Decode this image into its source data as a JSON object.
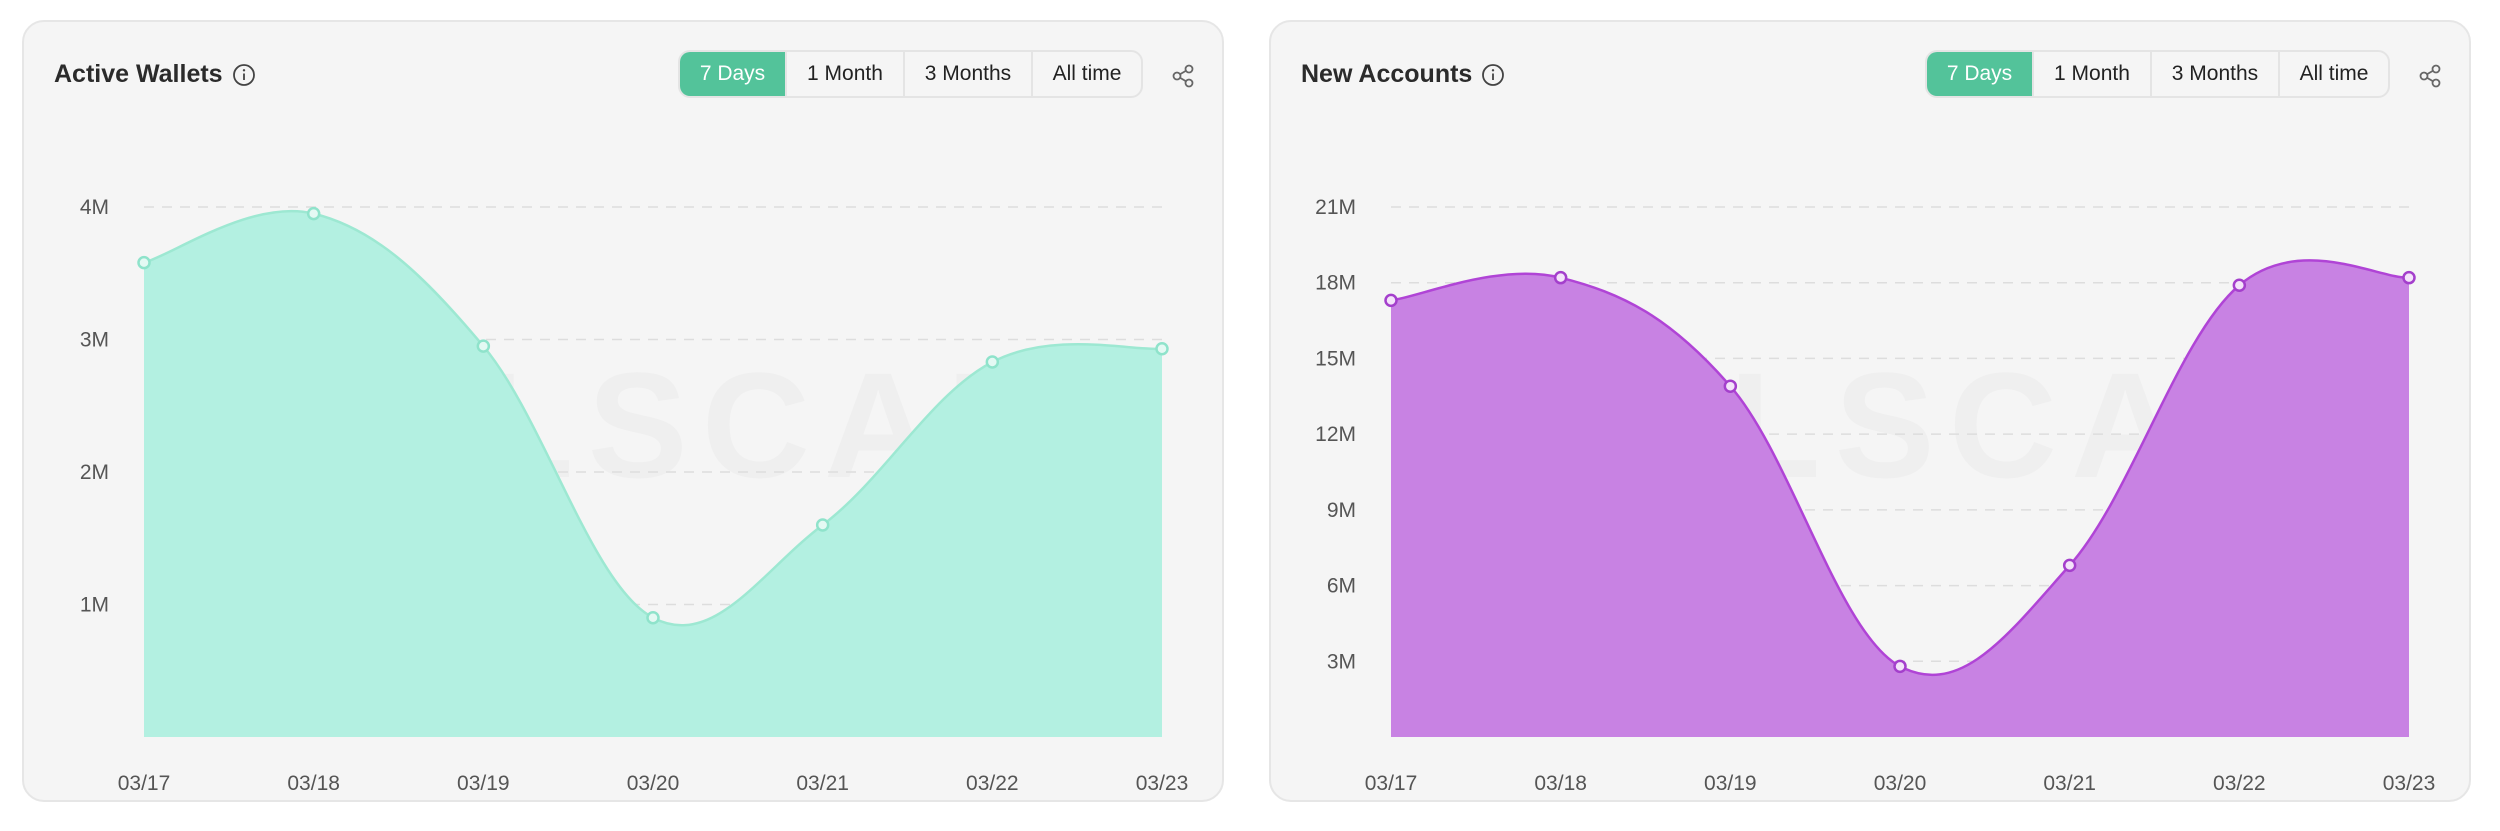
{
  "tabs": [
    "7 Days",
    "1 Month",
    "3 Months",
    "All time"
  ],
  "active_tab": "7 Days",
  "accent": "#53c39a",
  "cards": [
    {
      "title": "Active Wallets",
      "info_icon": "info-icon",
      "share_icon": "share-icon",
      "watermark": "SOLSCAN",
      "colors": {
        "line": "#9de8d2",
        "fill": "#b3f0e1",
        "marker_fill": "#e4f9f3",
        "marker_stroke": "#8fe3cb"
      }
    },
    {
      "title": "New Accounts",
      "info_icon": "info-icon",
      "share_icon": "share-icon",
      "watermark": "SOLSCAN",
      "colors": {
        "line": "#b044d6",
        "fill": "#c882e3",
        "marker_fill": "#f4e3fa",
        "marker_stroke": "#a43fcc"
      }
    }
  ],
  "chart_data": [
    {
      "type": "area",
      "title": "Active Wallets",
      "x": [
        "03/17",
        "03/18",
        "03/19",
        "03/20",
        "03/21",
        "03/22",
        "03/23"
      ],
      "series": [
        {
          "values": [
            3580000,
            3950000,
            2950000,
            900000,
            1600000,
            2830000,
            2930000
          ]
        }
      ],
      "yticks": [
        1000000,
        2000000,
        3000000,
        4000000
      ],
      "ytick_labels": [
        "1M",
        "2M",
        "3M",
        "4M"
      ],
      "ylim": [
        0,
        4000000
      ],
      "grid": true,
      "legend": "none"
    },
    {
      "type": "area",
      "title": "New Accounts",
      "x": [
        "03/17",
        "03/18",
        "03/19",
        "03/20",
        "03/21",
        "03/22",
        "03/23"
      ],
      "series": [
        {
          "values": [
            17300000,
            18200000,
            13900000,
            2800000,
            6800000,
            17900000,
            18200000
          ]
        }
      ],
      "yticks": [
        3000000,
        6000000,
        9000000,
        12000000,
        15000000,
        18000000,
        21000000
      ],
      "ytick_labels": [
        "3M",
        "6M",
        "9M",
        "12M",
        "15M",
        "18M",
        "21M"
      ],
      "ylim": [
        0,
        21000000
      ],
      "grid": true,
      "legend": "none"
    }
  ]
}
